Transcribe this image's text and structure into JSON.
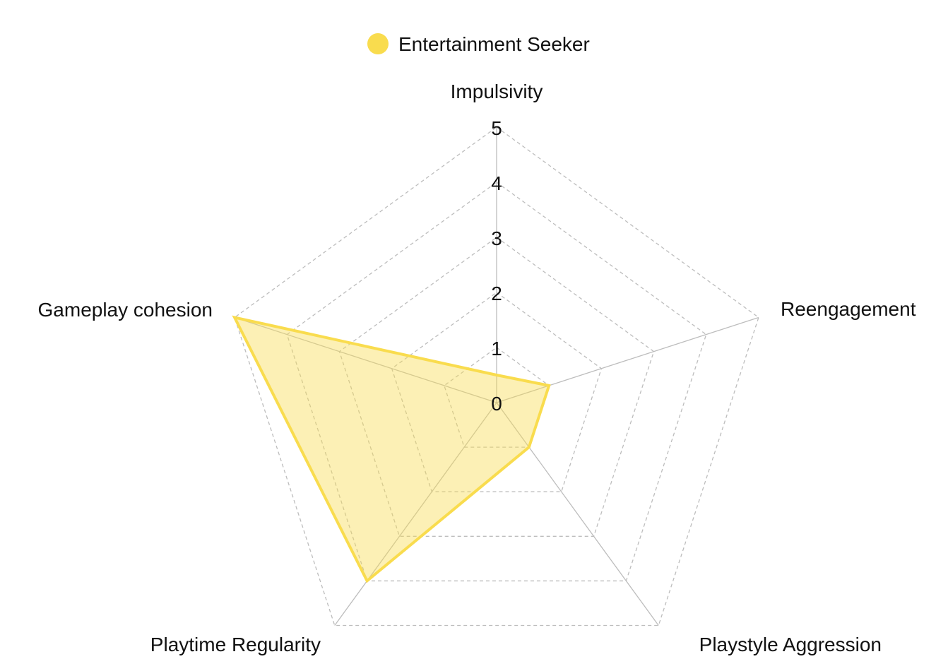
{
  "chart_data": {
    "type": "radar",
    "axes": [
      "Impulsivity",
      "Reengagement",
      "Playstyle Aggression",
      "Playtime Regularity",
      "Gameplay cohesion"
    ],
    "radial_ticks": [
      "0",
      "1",
      "2",
      "3",
      "4",
      "5"
    ],
    "rlim": [
      0,
      5
    ],
    "grid": true,
    "legend_position": "top",
    "series": [
      {
        "name": "Entertainment Seeker",
        "values": [
          0.5,
          1,
          1,
          4,
          5
        ],
        "color": "#F9DC4E"
      }
    ]
  }
}
